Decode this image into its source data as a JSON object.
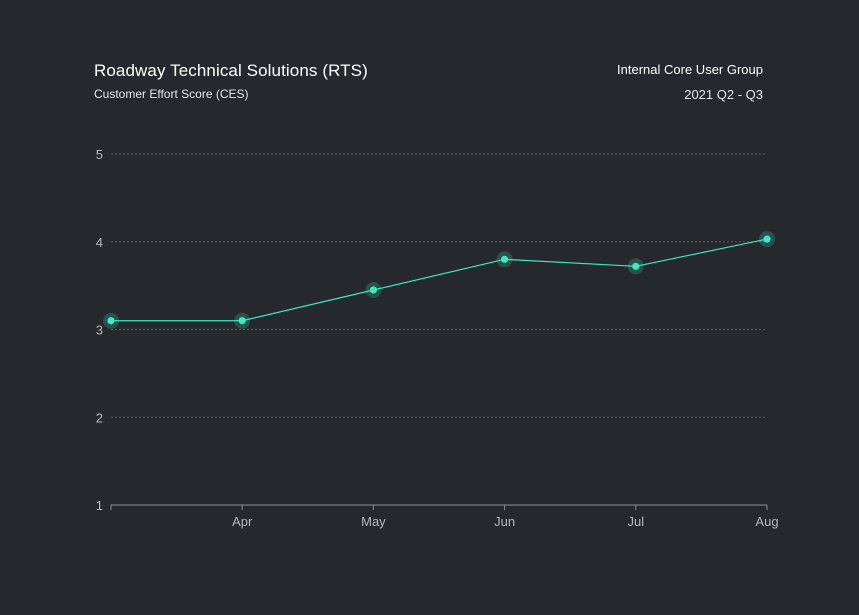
{
  "header": {
    "title": "Roadway Technical Solutions (RTS)",
    "subtitle": "Customer Effort Score (CES)",
    "group": "Internal Core User Group",
    "period": "2021 Q2 - Q3"
  },
  "colors": {
    "background": "#25282d",
    "line": "#3ee8c0",
    "grid": "#5a5e64",
    "axis": "#8a8e94"
  },
  "chart_data": {
    "type": "line",
    "x": [
      "",
      "Apr",
      "May",
      "Jun",
      "Jul",
      "Aug"
    ],
    "series": [
      {
        "values": [
          3.1,
          3.1,
          3.45,
          3.8,
          3.72,
          4.03
        ]
      }
    ],
    "ylim": [
      1,
      5
    ],
    "yticks": [
      1,
      2,
      3,
      4,
      5
    ],
    "grid": true
  }
}
